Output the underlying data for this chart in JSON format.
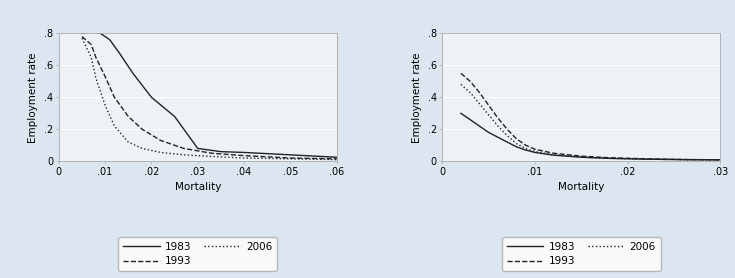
{
  "bg_color": "#dce6f0",
  "plot_bg_color": "#eef2f7",
  "left": {
    "xlabel": "Mortality",
    "ylabel": "Employment rate",
    "xlim": [
      0,
      0.06
    ],
    "ylim": [
      0,
      0.8
    ],
    "xticks": [
      0,
      0.01,
      0.02,
      0.03,
      0.04,
      0.05,
      0.06
    ],
    "xtick_labels": [
      "0",
      ".01",
      ".02",
      ".03",
      ".04",
      ".05",
      ".06"
    ],
    "yticks": [
      0,
      0.2,
      0.4,
      0.6,
      0.8
    ],
    "ytick_labels": [
      "0",
      ".2",
      ".4",
      ".6",
      ".8"
    ],
    "curves": {
      "1983": {
        "x": [
          0.005,
          0.007,
          0.009,
          0.011,
          0.013,
          0.016,
          0.02,
          0.025,
          0.03,
          0.035,
          0.04,
          0.05,
          0.06
        ],
        "y": [
          0.8,
          0.81,
          0.8,
          0.76,
          0.68,
          0.55,
          0.4,
          0.28,
          0.08,
          0.06,
          0.055,
          0.04,
          0.025
        ],
        "linestyle": "solid",
        "color": "#222222",
        "linewidth": 1.0
      },
      "1993": {
        "x": [
          0.005,
          0.007,
          0.008,
          0.01,
          0.012,
          0.015,
          0.018,
          0.022,
          0.027,
          0.033,
          0.04,
          0.05,
          0.06
        ],
        "y": [
          0.78,
          0.73,
          0.65,
          0.53,
          0.4,
          0.28,
          0.2,
          0.13,
          0.08,
          0.05,
          0.035,
          0.02,
          0.015
        ],
        "linestyle": "dashed",
        "color": "#222222",
        "linewidth": 1.0
      },
      "2006": {
        "x": [
          0.005,
          0.007,
          0.008,
          0.01,
          0.012,
          0.015,
          0.018,
          0.022,
          0.027,
          0.033,
          0.04,
          0.05,
          0.06
        ],
        "y": [
          0.77,
          0.65,
          0.52,
          0.35,
          0.22,
          0.12,
          0.08,
          0.055,
          0.04,
          0.03,
          0.02,
          0.015,
          0.01
        ],
        "linestyle": "dotted",
        "color": "#222222",
        "linewidth": 1.0
      }
    }
  },
  "right": {
    "xlabel": "Mortality",
    "ylabel": "Employment rate",
    "xlim": [
      0,
      0.03
    ],
    "ylim": [
      0,
      0.8
    ],
    "xticks": [
      0,
      0.01,
      0.02,
      0.03
    ],
    "xtick_labels": [
      "0",
      ".01",
      ".02",
      ".03"
    ],
    "yticks": [
      0,
      0.2,
      0.4,
      0.6,
      0.8
    ],
    "ytick_labels": [
      "0",
      ".2",
      ".4",
      ".6",
      ".8"
    ],
    "curves": {
      "1983": {
        "x": [
          0.002,
          0.003,
          0.004,
          0.005,
          0.006,
          0.007,
          0.008,
          0.009,
          0.01,
          0.012,
          0.015,
          0.018,
          0.022,
          0.026,
          0.03
        ],
        "y": [
          0.3,
          0.26,
          0.22,
          0.18,
          0.15,
          0.12,
          0.09,
          0.07,
          0.055,
          0.038,
          0.025,
          0.018,
          0.013,
          0.01,
          0.009
        ],
        "linestyle": "solid",
        "color": "#222222",
        "linewidth": 1.0
      },
      "1993": {
        "x": [
          0.002,
          0.003,
          0.004,
          0.005,
          0.006,
          0.007,
          0.008,
          0.009,
          0.01,
          0.012,
          0.015,
          0.018,
          0.022,
          0.026,
          0.03
        ],
        "y": [
          0.55,
          0.5,
          0.43,
          0.35,
          0.27,
          0.2,
          0.14,
          0.1,
          0.075,
          0.05,
          0.032,
          0.022,
          0.015,
          0.011,
          0.009
        ],
        "linestyle": "dashed",
        "color": "#222222",
        "linewidth": 1.0
      },
      "2006": {
        "x": [
          0.002,
          0.003,
          0.004,
          0.005,
          0.006,
          0.007,
          0.008,
          0.009,
          0.01,
          0.012,
          0.015,
          0.018,
          0.022,
          0.026,
          0.03
        ],
        "y": [
          0.48,
          0.43,
          0.36,
          0.29,
          0.22,
          0.16,
          0.11,
          0.08,
          0.06,
          0.04,
          0.026,
          0.018,
          0.013,
          0.01,
          0.008
        ],
        "linestyle": "dotted",
        "color": "#222222",
        "linewidth": 1.0
      }
    }
  },
  "legend_entries": [
    {
      "label": "1983",
      "linestyle": "solid"
    },
    {
      "label": "1993",
      "linestyle": "dashed"
    },
    {
      "label": "2006",
      "linestyle": "dotted"
    }
  ]
}
